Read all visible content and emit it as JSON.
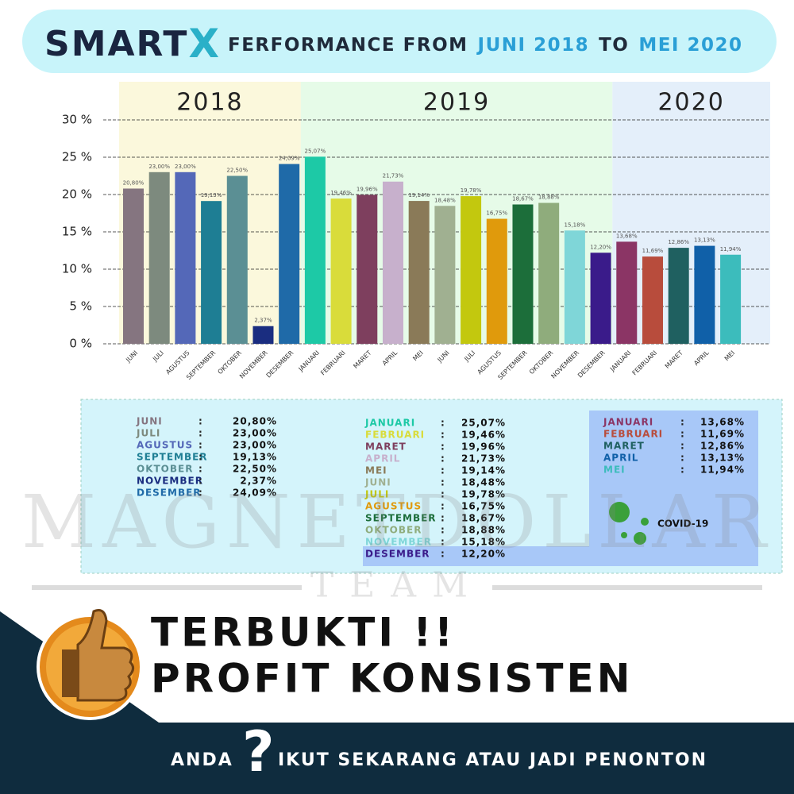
{
  "logo": {
    "main": "SMART",
    "accent": "X"
  },
  "title_parts": [
    "FERFORMANCE FROM",
    "JUNI 2018",
    "TO",
    "MEI 2020"
  ],
  "chart_data": {
    "type": "bar",
    "groups": [
      "2018",
      "2019",
      "2020"
    ],
    "categories": [
      "JUNI",
      "JULI",
      "AGUSTUS",
      "SEPTEMBER",
      "OKTOBER",
      "NOVEMBER",
      "DESEMBER",
      "JANUARI",
      "FEBRUARI",
      "MARET",
      "APRIL",
      "MEI",
      "JUNI",
      "JULI",
      "AGUSTUS",
      "SEPTEMBER",
      "OKTOBER",
      "NOVEMBER",
      "DESEMBER",
      "JANUARI",
      "FEBRUARI",
      "MARET",
      "APRIL",
      "MEI"
    ],
    "values": [
      20.8,
      23.0,
      23.0,
      19.13,
      22.5,
      2.37,
      24.09,
      25.07,
      19.46,
      19.96,
      21.73,
      19.14,
      18.48,
      19.78,
      16.75,
      18.67,
      18.88,
      15.18,
      12.2,
      13.68,
      11.69,
      12.86,
      13.13,
      11.94
    ],
    "value_labels": [
      "20,80%",
      "23,00%",
      "23,00%",
      "19,13%",
      "22,50%",
      "2,37%",
      "24,09%",
      "25,07%",
      "19,46%",
      "19,96%",
      "21,73%",
      "19,14%",
      "18,48%",
      "19,78%",
      "16,75%",
      "18,67%",
      "18,88%",
      "15,18%",
      "12,20%",
      "13,68%",
      "11,69%",
      "12,86%",
      "13,13%",
      "11,94%"
    ],
    "colors": [
      "#857580",
      "#7d8a7e",
      "#5468b8",
      "#1e7e94",
      "#5b8f94",
      "#1a2d80",
      "#1f6aa8",
      "#1dc9a6",
      "#d9dc3a",
      "#7e3f5e",
      "#c7b0cc",
      "#8a7a58",
      "#a0b091",
      "#c3c80e",
      "#e09a0c",
      "#1c6e3a",
      "#8fac7c",
      "#7fd6d8",
      "#3a1b8a",
      "#8b3565",
      "#b84c3c",
      "#1f6060",
      "#1060a8",
      "#3cbcbc"
    ],
    "ylim": [
      0,
      30
    ],
    "yticks": [
      {
        "value": 0,
        "label": "0 %"
      },
      {
        "value": 5,
        "label": "5 %"
      },
      {
        "value": 10,
        "label": "10 %"
      },
      {
        "value": 15,
        "label": "15 %"
      },
      {
        "value": 20,
        "label": "20 %"
      },
      {
        "value": 25,
        "label": "25 %"
      },
      {
        "value": 30,
        "label": "30 %"
      }
    ],
    "grid": true
  },
  "separator": ":",
  "covid": "COVID-19",
  "watermark": {
    "name": "MAGNETDOLLAR",
    "team": "TEAM"
  },
  "headline": [
    "TERBUKTI !!",
    "PROFIT KONSISTEN"
  ],
  "footer": {
    "lead": "ANDA",
    "mark": "?",
    "text": "IKUT SEKARANG ATAU JADI PENONTON"
  }
}
